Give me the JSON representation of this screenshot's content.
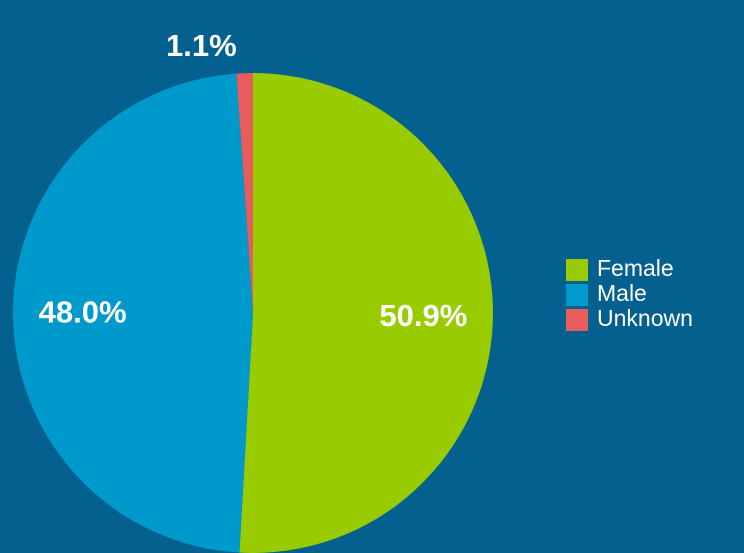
{
  "chart_data": {
    "type": "pie",
    "categories": [
      "Female",
      "Male",
      "Unknown"
    ],
    "values": [
      50.9,
      48.0,
      1.1
    ],
    "value_labels": [
      "50.9%",
      "48.0%",
      "1.1%"
    ],
    "colors": [
      "#99cc00",
      "#0099cc",
      "#e85c5c"
    ],
    "legend": "right"
  }
}
